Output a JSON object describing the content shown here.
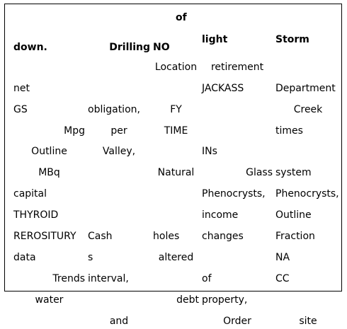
{
  "table": {
    "headers": [
      {
        "text": "down.",
        "align": "l"
      },
      {
        "text": "Drilling",
        "align": "r"
      },
      {
        "text": "NO",
        "align": "l",
        "over": "of"
      },
      {
        "text": "light",
        "align": "l"
      },
      {
        "text": "Storm",
        "align": "l"
      }
    ],
    "rows": [
      [
        {
          "t": "",
          "a": "l"
        },
        {
          "t": "",
          "a": "l"
        },
        {
          "t": "Location",
          "a": "c"
        },
        {
          "t": "retirement",
          "a": "c"
        },
        {
          "t": "",
          "a": "l"
        }
      ],
      [
        {
          "t": "net",
          "a": "l"
        },
        {
          "t": "",
          "a": "l"
        },
        {
          "t": "",
          "a": "l"
        },
        {
          "t": "JACKASS",
          "a": "l"
        },
        {
          "t": "Department",
          "a": "l"
        }
      ],
      [
        {
          "t": "GS",
          "a": "l"
        },
        {
          "t": "obligation,",
          "a": "l"
        },
        {
          "t": "FY",
          "a": "c"
        },
        {
          "t": "",
          "a": "l"
        },
        {
          "t": "Creek",
          "a": "c"
        }
      ],
      [
        {
          "t": "Mpg",
          "a": "r"
        },
        {
          "t": "per",
          "a": "c"
        },
        {
          "t": "TIME",
          "a": "c"
        },
        {
          "t": "",
          "a": "l"
        },
        {
          "t": "times",
          "a": "l"
        }
      ],
      [
        {
          "t": "Outline",
          "a": "c"
        },
        {
          "t": "Valley,",
          "a": "c"
        },
        {
          "t": "",
          "a": "l"
        },
        {
          "t": "INs",
          "a": "l"
        },
        {
          "t": "",
          "a": "l"
        }
      ],
      [
        {
          "t": "MBq",
          "a": "c"
        },
        {
          "t": "",
          "a": "l"
        },
        {
          "t": "Natural",
          "a": "c"
        },
        {
          "t": "Glass",
          "a": "r"
        },
        {
          "t": "system",
          "a": "l"
        }
      ],
      [
        {
          "t": "capital",
          "a": "l"
        },
        {
          "t": "",
          "a": "l"
        },
        {
          "t": "",
          "a": "l"
        },
        {
          "t": "Phenocrysts,",
          "a": "l"
        },
        {
          "t": "Phenocrysts,",
          "a": "l"
        }
      ],
      [
        {
          "t": "THYROID",
          "a": "l"
        },
        {
          "t": "",
          "a": "l"
        },
        {
          "t": "",
          "a": "l"
        },
        {
          "t": "income",
          "a": "l"
        },
        {
          "t": "Outline",
          "a": "l"
        }
      ],
      [
        {
          "t": "REROSITURY",
          "a": "l"
        },
        {
          "t": "Cash",
          "a": "l"
        },
        {
          "t": "holes",
          "a": "l"
        },
        {
          "t": "changes",
          "a": "l"
        },
        {
          "t": "Fraction",
          "a": "l"
        }
      ],
      [
        {
          "t": "data",
          "a": "l"
        },
        {
          "t": "s",
          "a": "l"
        },
        {
          "t": "altered",
          "a": "c"
        },
        {
          "t": "",
          "a": "l"
        },
        {
          "t": "NA",
          "a": "l"
        }
      ],
      [
        {
          "t": "Trends",
          "a": "r"
        },
        {
          "t": "interval,",
          "a": "l"
        },
        {
          "t": "",
          "a": "l"
        },
        {
          "t": "of",
          "a": "l"
        },
        {
          "t": "CC",
          "a": "l"
        }
      ],
      [
        {
          "t": "water",
          "a": "c"
        },
        {
          "t": "",
          "a": "l"
        },
        {
          "t": "debt",
          "a": "r"
        },
        {
          "t": "property,",
          "a": "l"
        },
        {
          "t": "",
          "a": "l"
        }
      ],
      [
        {
          "t": "",
          "a": "l"
        },
        {
          "t": "and",
          "a": "c"
        },
        {
          "t": "",
          "a": "l"
        },
        {
          "t": "Order",
          "a": "c"
        },
        {
          "t": "site",
          "a": "c"
        }
      ]
    ]
  }
}
